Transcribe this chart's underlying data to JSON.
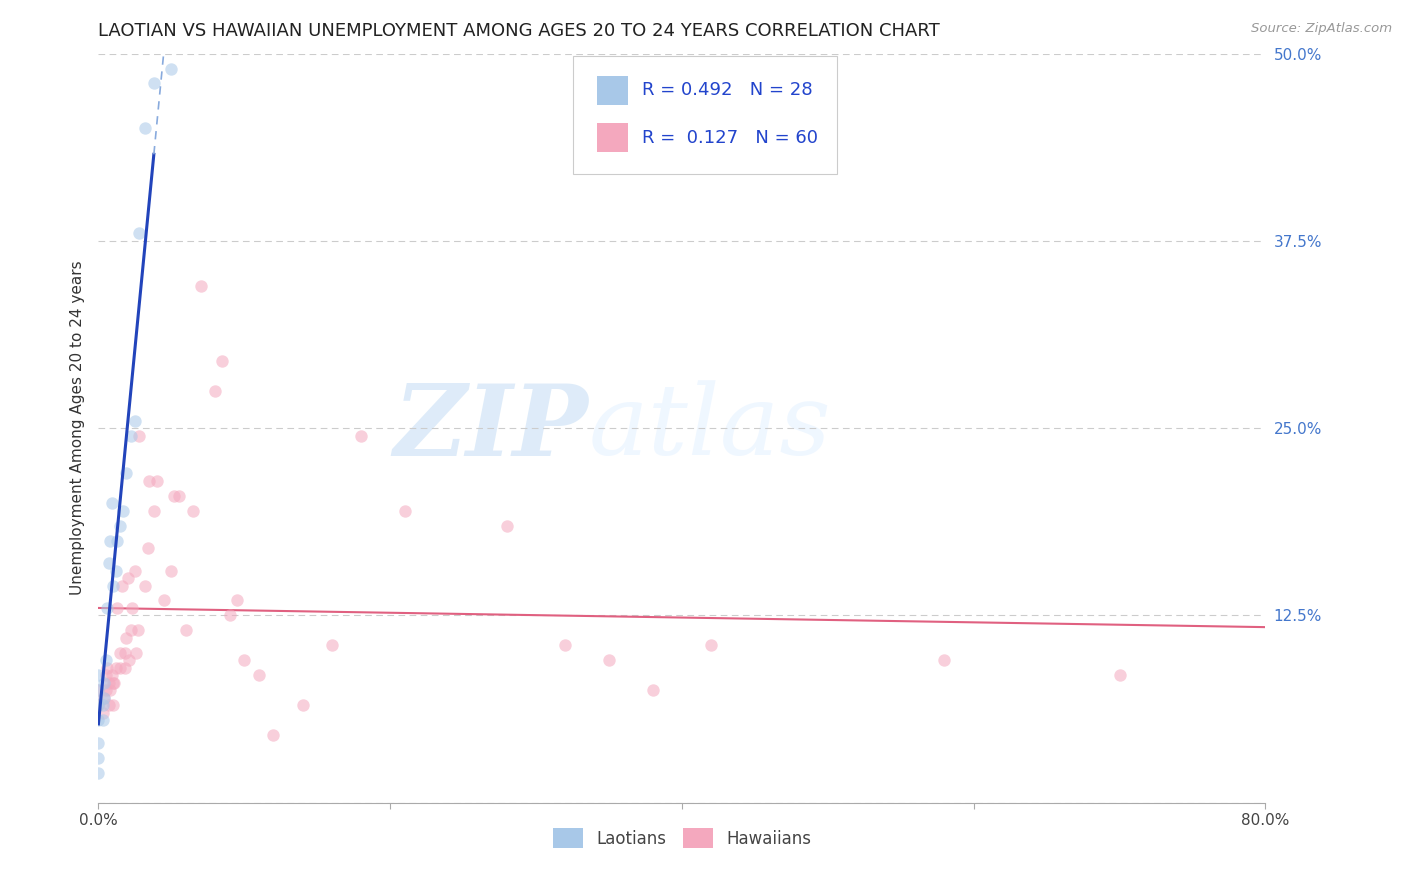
{
  "title": "LAOTIAN VS HAWAIIAN UNEMPLOYMENT AMONG AGES 20 TO 24 YEARS CORRELATION CHART",
  "source": "Source: ZipAtlas.com",
  "ylabel": "Unemployment Among Ages 20 to 24 years",
  "xlim": [
    0.0,
    0.8
  ],
  "ylim": [
    0.0,
    0.5
  ],
  "xticks": [
    0.0,
    0.2,
    0.4,
    0.6,
    0.8
  ],
  "xticklabels": [
    "0.0%",
    "",
    "",
    "",
    "80.0%"
  ],
  "yticks": [
    0.0,
    0.125,
    0.25,
    0.375,
    0.5
  ],
  "yticklabels": [
    "",
    "12.5%",
    "25.0%",
    "37.5%",
    "50.0%"
  ],
  "watermark_zip": "ZIP",
  "watermark_atlas": "atlas",
  "laotian_color": "#a8c8e8",
  "hawaiian_color": "#f4a8be",
  "laotian_line_solid_color": "#2244bb",
  "laotian_line_dashed_color": "#88aadd",
  "hawaiian_line_color": "#e06080",
  "laotian_R": 0.492,
  "laotian_N": 28,
  "hawaiian_R": 0.127,
  "hawaiian_N": 60,
  "legend_label_laotian": "Laotians",
  "legend_label_hawaiian": "Hawaiians",
  "laotian_x": [
    0.0,
    0.0,
    0.0,
    0.0,
    0.0,
    0.0,
    0.0,
    0.003,
    0.003,
    0.004,
    0.004,
    0.005,
    0.006,
    0.007,
    0.008,
    0.009,
    0.01,
    0.012,
    0.013,
    0.015,
    0.017,
    0.019,
    0.022,
    0.025,
    0.028,
    0.032,
    0.038,
    0.05
  ],
  "laotian_y": [
    0.02,
    0.03,
    0.04,
    0.055,
    0.065,
    0.075,
    0.085,
    0.055,
    0.065,
    0.07,
    0.08,
    0.095,
    0.13,
    0.16,
    0.175,
    0.2,
    0.145,
    0.155,
    0.175,
    0.185,
    0.195,
    0.22,
    0.245,
    0.255,
    0.38,
    0.45,
    0.48,
    0.49
  ],
  "hawaiian_x": [
    0.0,
    0.0,
    0.003,
    0.004,
    0.005,
    0.005,
    0.006,
    0.007,
    0.007,
    0.008,
    0.009,
    0.01,
    0.01,
    0.011,
    0.012,
    0.013,
    0.015,
    0.015,
    0.016,
    0.018,
    0.018,
    0.019,
    0.02,
    0.021,
    0.022,
    0.023,
    0.025,
    0.026,
    0.027,
    0.028,
    0.032,
    0.034,
    0.035,
    0.038,
    0.04,
    0.045,
    0.05,
    0.052,
    0.055,
    0.06,
    0.065,
    0.07,
    0.08,
    0.085,
    0.09,
    0.095,
    0.1,
    0.11,
    0.12,
    0.14,
    0.16,
    0.18,
    0.21,
    0.28,
    0.32,
    0.35,
    0.38,
    0.42,
    0.58,
    0.7
  ],
  "hawaiian_y": [
    0.065,
    0.075,
    0.06,
    0.07,
    0.075,
    0.085,
    0.09,
    0.065,
    0.08,
    0.075,
    0.085,
    0.065,
    0.08,
    0.08,
    0.09,
    0.13,
    0.09,
    0.1,
    0.145,
    0.09,
    0.1,
    0.11,
    0.15,
    0.095,
    0.115,
    0.13,
    0.155,
    0.1,
    0.115,
    0.245,
    0.145,
    0.17,
    0.215,
    0.195,
    0.215,
    0.135,
    0.155,
    0.205,
    0.205,
    0.115,
    0.195,
    0.345,
    0.275,
    0.295,
    0.125,
    0.135,
    0.095,
    0.085,
    0.045,
    0.065,
    0.105,
    0.245,
    0.195,
    0.185,
    0.105,
    0.095,
    0.075,
    0.105,
    0.095,
    0.085
  ],
  "background_color": "#ffffff",
  "grid_color": "#cccccc",
  "title_fontsize": 13,
  "axis_label_fontsize": 11,
  "tick_fontsize": 11,
  "marker_size": 80,
  "marker_alpha": 0.55
}
